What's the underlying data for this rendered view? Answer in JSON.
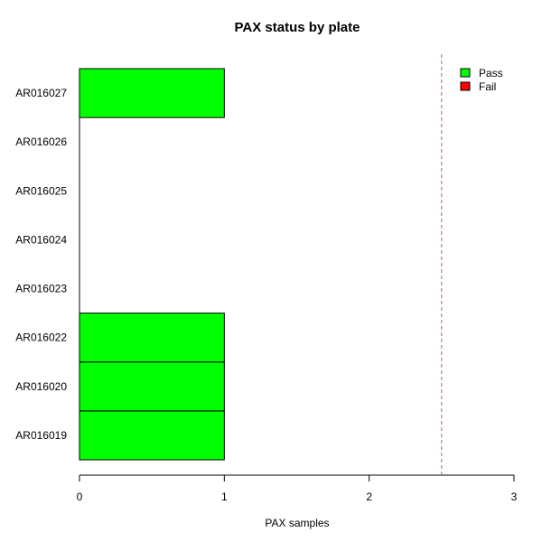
{
  "chart_data": {
    "type": "bar",
    "orientation": "horizontal",
    "stacked": true,
    "title": "PAX status by plate",
    "xlabel": "PAX samples",
    "ylabel": "",
    "xlim": [
      0,
      3
    ],
    "x_ticks": [
      "0",
      "1",
      "2",
      "3"
    ],
    "categories": [
      "AR016019",
      "AR016020",
      "AR016022",
      "AR016023",
      "AR016024",
      "AR016025",
      "AR016026",
      "AR016027"
    ],
    "series": [
      {
        "name": "Pass",
        "color": "#00ff00",
        "values": [
          1,
          1,
          1,
          0,
          0,
          0,
          0,
          1
        ]
      },
      {
        "name": "Fail",
        "color": "#ff0000",
        "values": [
          0,
          0,
          0,
          0,
          0,
          0,
          0,
          0
        ]
      }
    ],
    "reference_line": {
      "x": 2.5,
      "color": "#cd5c5c",
      "style": "dashed"
    },
    "legend_position": "top-right",
    "grid": false
  }
}
